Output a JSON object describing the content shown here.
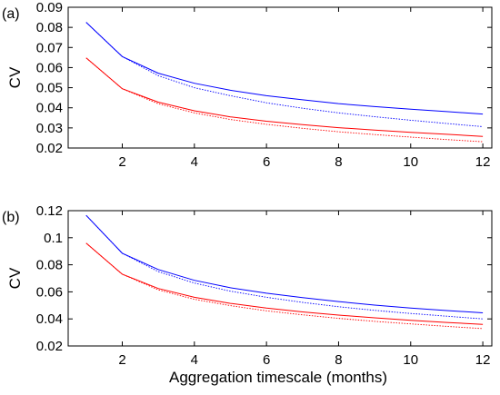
{
  "chart_data": [
    {
      "type": "line",
      "panel_label": "(a)",
      "xlabel": "",
      "ylabel": "CV",
      "xlim": [
        0.5,
        12.25
      ],
      "ylim": [
        0.02,
        0.09
      ],
      "xticks": [
        2,
        4,
        6,
        8,
        10,
        12
      ],
      "yticks": [
        0.02,
        0.03,
        0.04,
        0.05,
        0.06,
        0.07,
        0.08,
        0.09
      ],
      "ytick_labels": [
        "0.02",
        "0.03",
        "0.04",
        "0.05",
        "0.06",
        "0.07",
        "0.08",
        "0.09"
      ],
      "x": [
        1,
        2,
        3,
        4,
        5,
        6,
        7,
        8,
        9,
        10,
        11,
        12
      ],
      "series": [
        {
          "color": "#0000ff",
          "dash": "solid",
          "values": [
            0.0825,
            0.0655,
            0.0572,
            0.0522,
            0.0487,
            0.046,
            0.044,
            0.0421,
            0.0406,
            0.0393,
            0.0381,
            0.0369
          ]
        },
        {
          "color": "#0000ff",
          "dash": "dotted",
          "values": [
            0.0825,
            0.0655,
            0.056,
            0.05,
            0.046,
            0.0425,
            0.0398,
            0.0375,
            0.0356,
            0.0338,
            0.0322,
            0.0306
          ]
        },
        {
          "color": "#ff0000",
          "dash": "solid",
          "values": [
            0.0648,
            0.0495,
            0.0428,
            0.0385,
            0.0355,
            0.0333,
            0.0316,
            0.0301,
            0.0289,
            0.0278,
            0.0268,
            0.0258
          ]
        },
        {
          "color": "#ff0000",
          "dash": "dotted",
          "values": [
            0.0648,
            0.0495,
            0.042,
            0.0375,
            0.0342,
            0.0318,
            0.0298,
            0.0281,
            0.0267,
            0.0254,
            0.0242,
            0.0231
          ]
        }
      ]
    },
    {
      "type": "line",
      "panel_label": "(b)",
      "xlabel": "Aggregation timescale (months)",
      "ylabel": "CV",
      "xlim": [
        0.5,
        12.25
      ],
      "ylim": [
        0.02,
        0.12
      ],
      "xticks": [
        2,
        4,
        6,
        8,
        10,
        12
      ],
      "yticks": [
        0.02,
        0.04,
        0.06,
        0.08,
        0.1,
        0.12
      ],
      "ytick_labels": [
        "0.02",
        "0.04",
        "0.06",
        "0.08",
        "0.1",
        "0.12"
      ],
      "x": [
        1,
        2,
        3,
        4,
        5,
        6,
        7,
        8,
        9,
        10,
        11,
        12
      ],
      "series": [
        {
          "color": "#0000ff",
          "dash": "solid",
          "values": [
            0.1165,
            0.0885,
            0.0765,
            0.0685,
            0.063,
            0.059,
            0.0557,
            0.0528,
            0.0502,
            0.048,
            0.0462,
            0.0445
          ]
        },
        {
          "color": "#0000ff",
          "dash": "dotted",
          "values": [
            0.1165,
            0.0885,
            0.075,
            0.0665,
            0.0605,
            0.056,
            0.0522,
            0.049,
            0.0463,
            0.044,
            0.042,
            0.04
          ]
        },
        {
          "color": "#ff0000",
          "dash": "solid",
          "values": [
            0.096,
            0.073,
            0.0625,
            0.056,
            0.0515,
            0.048,
            0.0452,
            0.0428,
            0.0408,
            0.039,
            0.0374,
            0.036
          ]
        },
        {
          "color": "#ff0000",
          "dash": "dotted",
          "values": [
            0.096,
            0.073,
            0.0615,
            0.0545,
            0.0498,
            0.046,
            0.043,
            0.0404,
            0.0382,
            0.0363,
            0.0345,
            0.0328
          ]
        }
      ]
    }
  ]
}
